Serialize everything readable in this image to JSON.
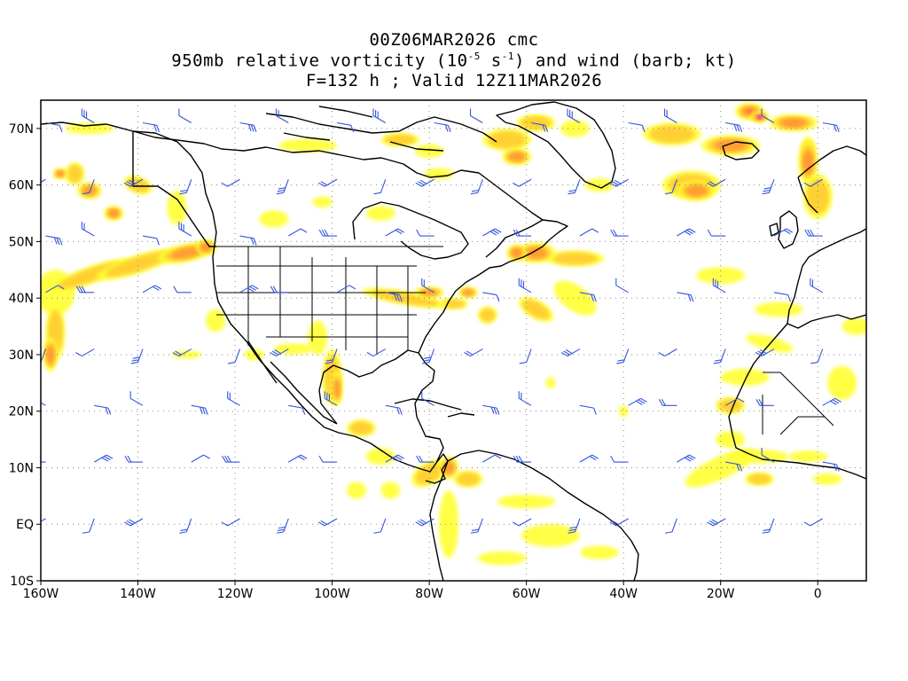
{
  "title": {
    "line1": "00Z06MAR2026 cmc",
    "line2_prefix": "950mb relative vorticity (10",
    "line2_exp1": "-5",
    "line2_mid": " s",
    "line2_exp2": "-1",
    "line2_suffix": ") and wind (barb; kt)",
    "line3": "F=132 h ; Valid 12Z11MAR2026"
  },
  "axes": {
    "lon_labels": [
      "160W",
      "140W",
      "120W",
      "100W",
      "80W",
      "60W",
      "40W",
      "20W",
      "0"
    ],
    "lat_labels": [
      "70N",
      "60N",
      "50N",
      "40N",
      "30N",
      "20N",
      "10N",
      "EQ",
      "10S"
    ],
    "lon_range": [
      -160,
      10
    ],
    "lat_range": [
      -10,
      75
    ]
  },
  "colors": {
    "shade_low": "#ffff33",
    "shade_mid": "#ffcc33",
    "shade_high": "#ff9933",
    "shade_max": "#ff3366",
    "shade_peak": "#ff00ff",
    "coast": "#000000",
    "barb": "#3355dd",
    "grid": "#888888"
  }
}
